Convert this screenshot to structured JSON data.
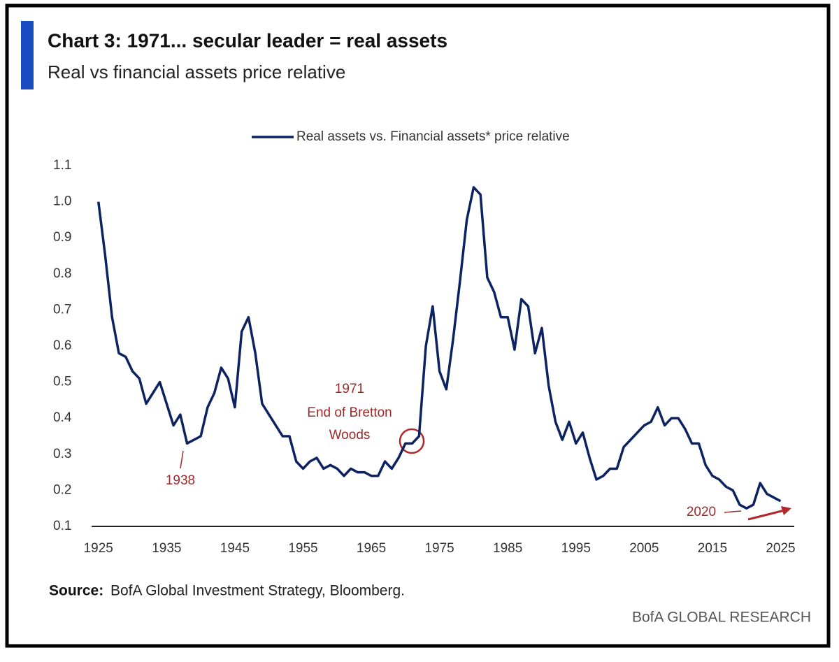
{
  "chart_data": {
    "type": "line",
    "title": "Chart 3: 1971... secular leader = real assets",
    "subtitle": "Real vs financial assets price relative",
    "source_label": "Source:",
    "source": "BofA Global Investment Strategy, Bloomberg.",
    "branding": "BofA GLOBAL RESEARCH",
    "annotations": [
      "1971",
      "End of Bretton",
      "Woods",
      "1938",
      "2020"
    ],
    "x": [
      1925,
      1926,
      1927,
      1928,
      1929,
      1930,
      1931,
      1932,
      1933,
      1934,
      1935,
      1936,
      1937,
      1938,
      1939,
      1940,
      1941,
      1942,
      1943,
      1944,
      1945,
      1946,
      1947,
      1948,
      1949,
      1950,
      1951,
      1952,
      1953,
      1954,
      1955,
      1956,
      1957,
      1958,
      1959,
      1960,
      1961,
      1962,
      1963,
      1964,
      1965,
      1966,
      1967,
      1968,
      1969,
      1970,
      1971,
      1972,
      1973,
      1974,
      1975,
      1976,
      1977,
      1978,
      1979,
      1980,
      1981,
      1982,
      1983,
      1984,
      1985,
      1986,
      1987,
      1988,
      1989,
      1990,
      1991,
      1992,
      1993,
      1994,
      1995,
      1996,
      1997,
      1998,
      1999,
      2000,
      2001,
      2002,
      2003,
      2004,
      2005,
      2006,
      2007,
      2008,
      2009,
      2010,
      2011,
      2012,
      2013,
      2014,
      2015,
      2016,
      2017,
      2018,
      2019,
      2020,
      2021,
      2022,
      2023,
      2024,
      2025
    ],
    "series": [
      {
        "name": "Real assets vs. Financial assets* price relative",
        "color": "#0d2260",
        "values": [
          1.0,
          0.85,
          0.68,
          0.58,
          0.57,
          0.53,
          0.51,
          0.44,
          0.47,
          0.5,
          0.44,
          0.38,
          0.41,
          0.33,
          0.34,
          0.35,
          0.43,
          0.47,
          0.54,
          0.51,
          0.43,
          0.64,
          0.68,
          0.58,
          0.44,
          0.41,
          0.38,
          0.35,
          0.35,
          0.28,
          0.26,
          0.28,
          0.29,
          0.26,
          0.27,
          0.26,
          0.24,
          0.26,
          0.25,
          0.25,
          0.24,
          0.24,
          0.28,
          0.26,
          0.29,
          0.33,
          0.33,
          0.35,
          0.6,
          0.71,
          0.53,
          0.48,
          0.62,
          0.78,
          0.95,
          1.04,
          1.02,
          0.79,
          0.75,
          0.68,
          0.68,
          0.59,
          0.73,
          0.71,
          0.58,
          0.65,
          0.49,
          0.39,
          0.34,
          0.39,
          0.33,
          0.36,
          0.29,
          0.23,
          0.24,
          0.26,
          0.26,
          0.32,
          0.34,
          0.36,
          0.38,
          0.39,
          0.43,
          0.38,
          0.4,
          0.4,
          0.37,
          0.33,
          0.33,
          0.27,
          0.24,
          0.23,
          0.21,
          0.2,
          0.16,
          0.15,
          0.16,
          0.22,
          0.19,
          0.18,
          0.17
        ]
      }
    ],
    "xlim": [
      1924,
      2027
    ],
    "xticks": [
      1925,
      1935,
      1945,
      1955,
      1965,
      1975,
      1985,
      1995,
      2005,
      2015,
      2025
    ],
    "ylim": [
      0.1,
      1.1
    ],
    "yticks": [
      0.1,
      0.2,
      0.3,
      0.4,
      0.5,
      0.6,
      0.7,
      0.8,
      0.9,
      {
        "value": 1,
        "label": "1.0"
      },
      1.1
    ],
    "grid": false
  }
}
